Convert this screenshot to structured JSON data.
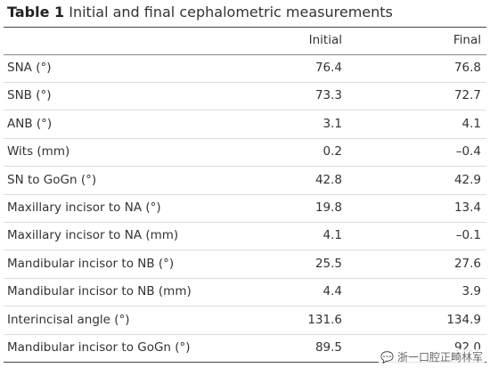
{
  "table": {
    "label": "Table 1",
    "title": "Initial and final cephalometric measurements",
    "columns": [
      "Initial",
      "Final"
    ],
    "rows": [
      [
        "SNA (°)",
        "76.4",
        "76.8"
      ],
      [
        "SNB (°)",
        "73.3",
        "72.7"
      ],
      [
        "ANB (°)",
        "3.1",
        "4.1"
      ],
      [
        "Wits (mm)",
        "0.2",
        "–0.4"
      ],
      [
        "SN to GoGn (°)",
        "42.8",
        "42.9"
      ],
      [
        "Maxillary incisor to NA (°)",
        "19.8",
        "13.4"
      ],
      [
        "Maxillary incisor to NA (mm)",
        "4.1",
        "–0.1"
      ],
      [
        "Mandibular incisor to NB (°)",
        "25.5",
        "27.6"
      ],
      [
        "Mandibular incisor to NB (mm)",
        "4.4",
        "3.9"
      ],
      [
        "Interincisal angle (°)",
        "131.6",
        "134.9"
      ],
      [
        "Mandibular incisor to GoGn (°)",
        "89.5",
        "92.0"
      ]
    ]
  },
  "watermark": "浙一口腔正畸林军"
}
